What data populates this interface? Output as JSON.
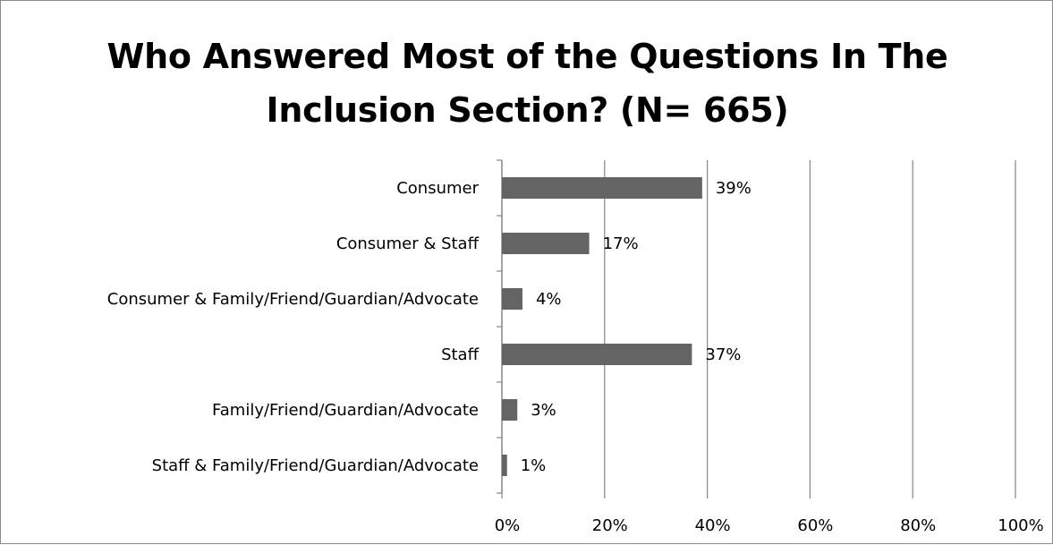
{
  "chart_data": {
    "type": "bar",
    "orientation": "horizontal",
    "title_lines": [
      "Who Answered Most of the Questions In The",
      "Inclusion Section? (N= 665)"
    ],
    "categories": [
      "Consumer",
      "Consumer & Staff",
      "Consumer & Family/Friend/Guardian/Advocate",
      "Staff",
      "Family/Friend/Guardian/Advocate",
      "Staff & Family/Friend/Guardian/Advocate"
    ],
    "values": [
      39,
      17,
      4,
      37,
      3,
      1
    ],
    "data_labels": [
      "39%",
      "17%",
      "4%",
      "37%",
      "3%",
      "1%"
    ],
    "xlim": [
      0,
      100
    ],
    "x_ticks": [
      0,
      20,
      40,
      60,
      80,
      100
    ],
    "x_tick_labels": [
      "0%",
      "20%",
      "40%",
      "60%",
      "80%",
      "100%"
    ],
    "xlabel": "",
    "ylabel": "",
    "grid": "vertical",
    "legend": "none",
    "bar_color": "#646464",
    "grid_color": "#868686"
  }
}
